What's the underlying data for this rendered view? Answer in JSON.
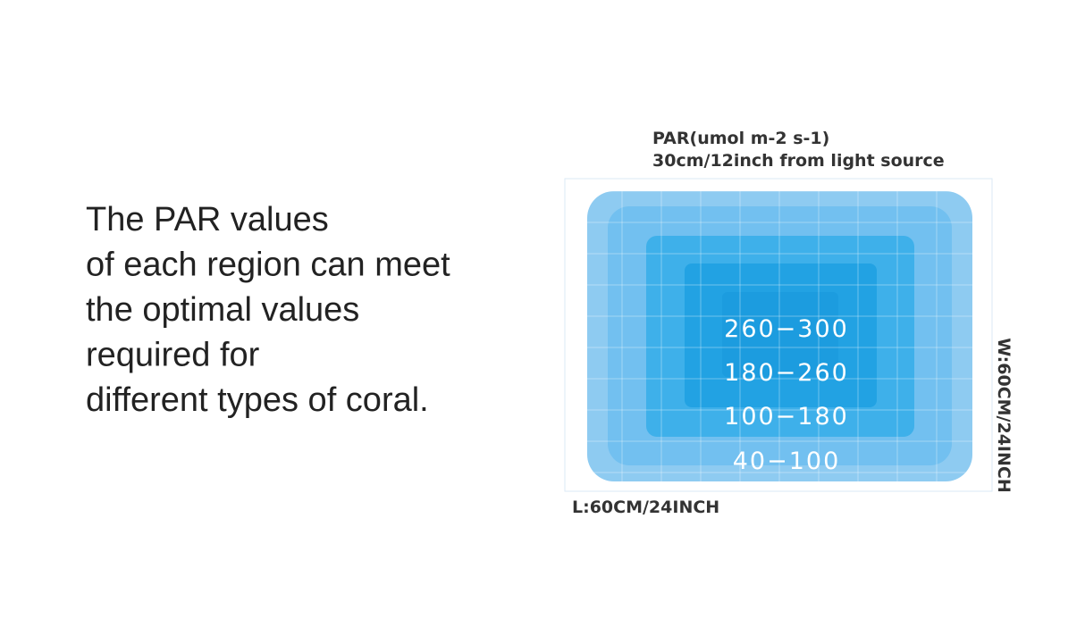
{
  "description": {
    "lines": [
      "The PAR values",
      "of each region can meet",
      "the optimal values",
      "required for",
      "different types of coral."
    ]
  },
  "diagram": {
    "title_lines": [
      "PAR(umol  m-2 s-1)",
      "30cm/12inch from light source"
    ],
    "zones": [
      "260−300",
      "180−260",
      "100−180",
      "40−100"
    ],
    "length_label": "L:60CM/24INCH",
    "width_label": "W:60CM/24INCH"
  }
}
